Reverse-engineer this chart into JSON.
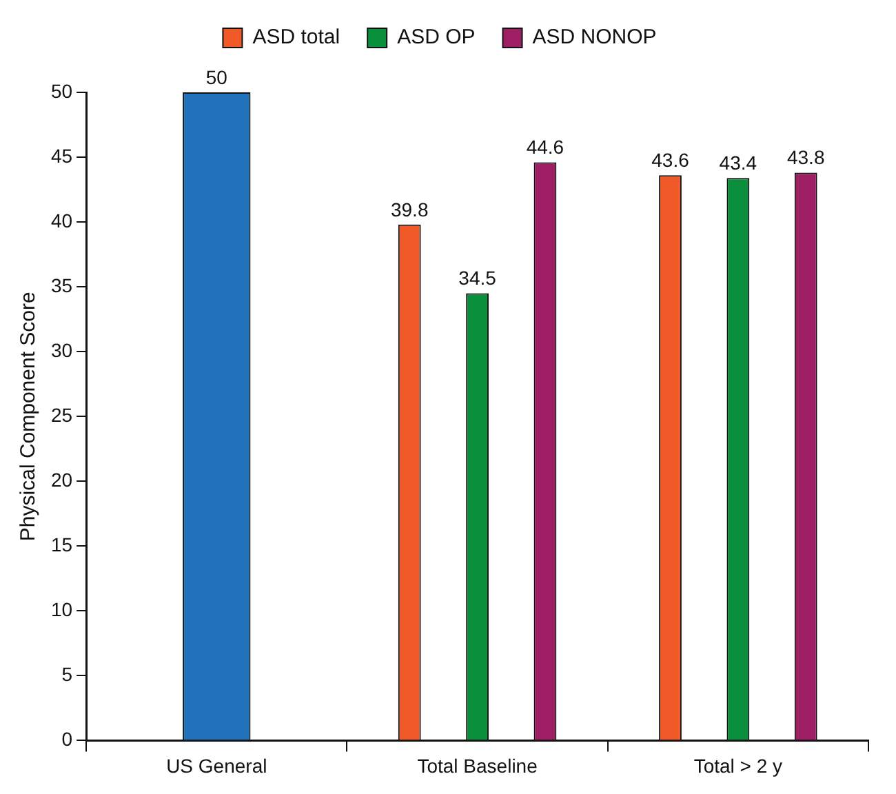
{
  "chart_data": {
    "type": "bar",
    "ylabel": "Physical Component Score",
    "categories": [
      "US General",
      "Total Baseline",
      "Total > 2 y"
    ],
    "series": [
      {
        "color": "#1f72bb",
        "values": [
          50,
          null,
          null
        ]
      },
      {
        "name": "ASD total",
        "color": "#f05a28",
        "values": [
          null,
          39.8,
          43.6
        ]
      },
      {
        "name": "ASD OP",
        "color": "#0a8f3c",
        "values": [
          null,
          34.5,
          43.4
        ]
      },
      {
        "name": "ASD NONOP",
        "color": "#9e1f63",
        "values": [
          null,
          44.6,
          43.8
        ]
      }
    ],
    "ylim": [
      0,
      50
    ],
    "yticks": [
      0,
      5,
      10,
      15,
      20,
      25,
      30,
      35,
      40,
      45,
      50
    ],
    "grid": false,
    "legend": "top",
    "data_labels": true
  }
}
